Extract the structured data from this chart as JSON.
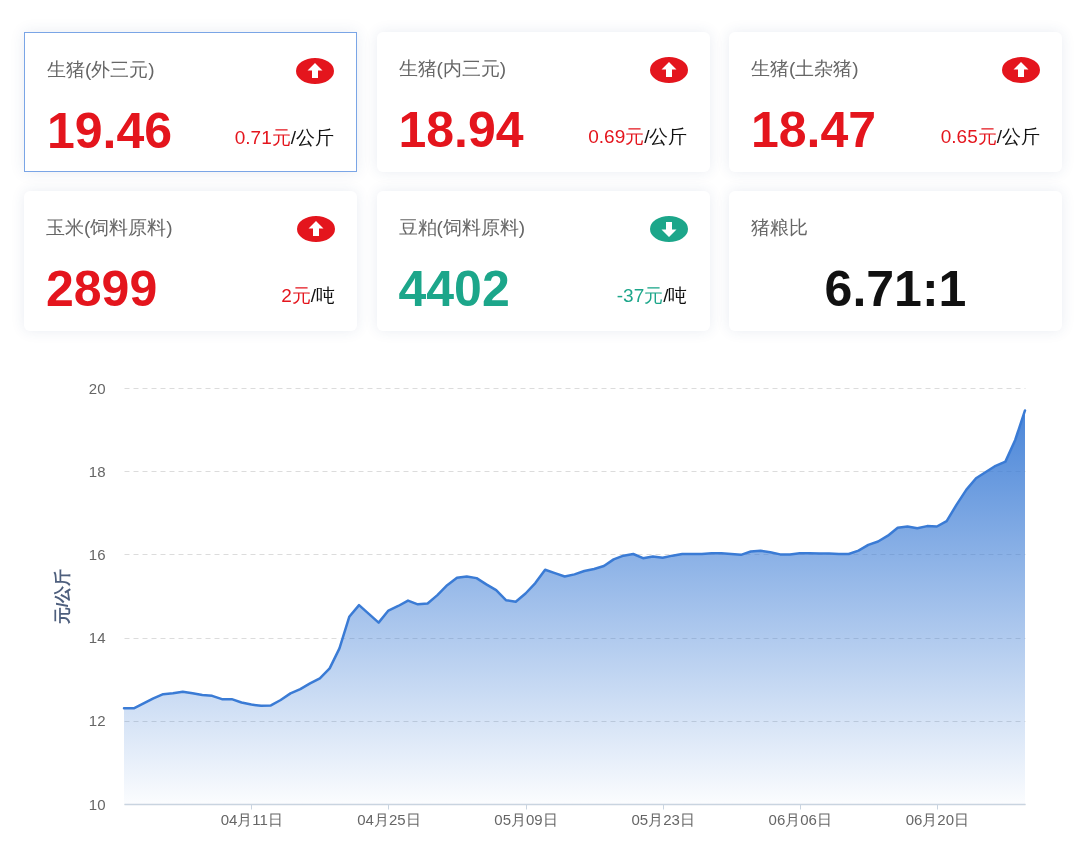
{
  "chart_data": [
    {
      "type": "other",
      "title": "生猪(外三元)",
      "annotations": [
        "19.46",
        "0.71元",
        "/公斤"
      ],
      "color": "#e4151d"
    },
    {
      "type": "other",
      "title": "生猪(内三元)",
      "annotations": [
        "18.94",
        "0.69元",
        "/公斤"
      ],
      "color": "#e4151d"
    },
    {
      "type": "other",
      "title": "生猪(土杂猪)",
      "annotations": [
        "18.47",
        "0.65元",
        "/公斤"
      ],
      "color": "#e4151d"
    },
    {
      "type": "other",
      "title": "玉米(饲料原料)",
      "annotations": [
        "2899",
        "2元",
        "/吨"
      ],
      "color": "#e4151d"
    },
    {
      "type": "other",
      "title": "豆粕(饲料原料)",
      "annotations": [
        "4402",
        "-37元",
        "/吨"
      ],
      "color": "#1ca68a"
    },
    {
      "type": "other",
      "title": "猪粮比",
      "annotations": [
        "6.71:1"
      ],
      "color": "#111111"
    },
    {
      "type": "area",
      "ylabel": "元/公斤",
      "color": "#3a7bd5",
      "x": [
        "--03-29",
        "--03-30",
        "--03-31",
        "--04-01",
        "--04-02",
        "--04-03",
        "--04-04",
        "--04-05",
        "--04-06",
        "--04-07",
        "--04-08",
        "--04-09",
        "--04-10",
        "--04-11",
        "--04-12",
        "--04-13",
        "--04-14",
        "--04-15",
        "--04-16",
        "--04-17",
        "--04-18",
        "--04-19",
        "--04-20",
        "--04-21",
        "--04-22",
        "--04-23",
        "--04-24",
        "--04-25",
        "--04-26",
        "--04-27",
        "--04-28",
        "--04-29",
        "--04-30",
        "--05-01",
        "--05-02",
        "--05-03",
        "--05-04",
        "--05-05",
        "--05-06",
        "--05-07",
        "--05-08",
        "--05-09",
        "--05-10",
        "--05-11",
        "--05-12",
        "--05-13",
        "--05-14",
        "--05-15",
        "--05-16",
        "--05-17",
        "--05-18",
        "--05-19",
        "--05-20",
        "--05-21",
        "--05-22",
        "--05-23",
        "--05-24",
        "--05-25",
        "--05-26",
        "--05-27",
        "--05-28",
        "--05-29",
        "--05-30",
        "--05-31",
        "--06-01",
        "--06-02",
        "--06-03",
        "--06-04",
        "--06-05",
        "--06-06",
        "--06-07",
        "--06-08",
        "--06-09",
        "--06-10",
        "--06-11",
        "--06-12",
        "--06-13",
        "--06-14",
        "--06-15",
        "--06-16",
        "--06-17",
        "--06-18",
        "--06-19",
        "--06-20",
        "--06-21",
        "--06-22",
        "--06-23",
        "--06-24",
        "--06-25",
        "--06-26",
        "--06-27",
        "--06-28",
        "--06-29"
      ],
      "values": [
        12.3,
        12.3,
        12.42,
        12.54,
        12.64,
        12.66,
        12.7,
        12.66,
        12.62,
        12.6,
        12.52,
        12.52,
        12.44,
        12.39,
        12.36,
        12.37,
        12.5,
        12.66,
        12.76,
        12.9,
        13.02,
        13.26,
        13.74,
        14.5,
        14.78,
        14.57,
        14.36,
        14.65,
        14.76,
        14.89,
        14.8,
        14.82,
        15.02,
        15.26,
        15.44,
        15.47,
        15.43,
        15.28,
        15.14,
        14.9,
        14.86,
        15.06,
        15.31,
        15.63,
        15.55,
        15.47,
        15.52,
        15.6,
        15.65,
        15.72,
        15.88,
        15.97,
        16.01,
        15.91,
        15.95,
        15.92,
        15.97,
        16.01,
        16.01,
        16.01,
        16.03,
        16.03,
        16.01,
        15.99,
        16.07,
        16.09,
        16.05,
        16.0,
        16.0,
        16.03,
        16.03,
        16.02,
        16.02,
        16.01,
        16.01,
        16.09,
        16.23,
        16.31,
        16.45,
        16.64,
        16.67,
        16.63,
        16.68,
        16.67,
        16.8,
        17.19,
        17.55,
        17.83,
        17.98,
        18.13,
        18.23,
        18.75,
        19.46
      ],
      "xlim": [
        "--03-29",
        "--06-29"
      ],
      "xticks": [
        {
          "value": "--04-11",
          "label": "04月11日"
        },
        {
          "value": "--04-25",
          "label": "04月25日"
        },
        {
          "value": "--05-09",
          "label": "05月09日"
        },
        {
          "value": "--05-23",
          "label": "05月23日"
        },
        {
          "value": "--06-06",
          "label": "06月06日"
        },
        {
          "value": "--06-20",
          "label": "06月20日"
        }
      ],
      "ylim": [
        10,
        20
      ],
      "yticks": [
        10,
        12,
        14,
        16,
        18,
        20
      ],
      "grid": "y"
    }
  ]
}
